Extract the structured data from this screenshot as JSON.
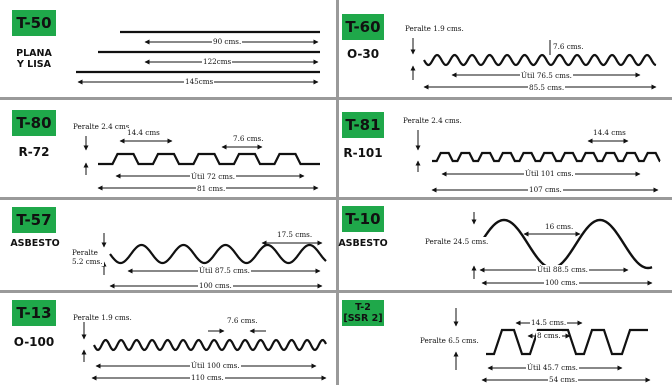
{
  "panels": [
    {
      "code": "T-50",
      "name": "PLANA\nY LISA",
      "dims": {
        "d1": "90 cms.",
        "d2": "122cms",
        "d3": "145cms"
      }
    },
    {
      "code": "T-60",
      "name": "O-30",
      "dims": {
        "peralte": "Peralte 1.9 cms.",
        "pitch": "7.6 cms.",
        "util": "Útil 76.5 cms.",
        "total": "85.5 cms."
      }
    },
    {
      "code": "T-80",
      "name": "R-72",
      "dims": {
        "peralte": "Peralte 2.4 cms.",
        "crest": "14.4 cms",
        "pitch": "7.6 cms.",
        "util": "Útil 72 cms.",
        "total": "81 cms."
      }
    },
    {
      "code": "T-81",
      "name": "R-101",
      "dims": {
        "peralte": "Peralte 2.4 cms.",
        "crest": "14.4 cms",
        "util": "Útil 101 cms.",
        "total": "107 cms."
      }
    },
    {
      "code": "T-57",
      "name": "ASBESTO",
      "dims": {
        "peralte": "Peralte\n5.2 cms.",
        "pitch": "17.5 cms.",
        "util": "Útil 87.5 cms.",
        "total": "100 cms."
      }
    },
    {
      "code": "T-10",
      "name": "ASBESTO",
      "dims": {
        "peralte": "Peralte 24.5 cms.",
        "pitch": "16 cms.",
        "util": "Útil 88.5 cms.",
        "total": "100 cms."
      }
    },
    {
      "code": "T-13",
      "name": "O-100",
      "dims": {
        "peralte": "Peralte 1.9 cms.",
        "pitch": "7.6 cms.",
        "util": "Útil 100 cms.",
        "total": "110 cms."
      }
    },
    {
      "code": "T-2\n[SSR 2]",
      "name": "",
      "dims": {
        "peralte": "Peralte 6.5 cms.",
        "crest": "14.5 cms.",
        "rib": "8 cms.",
        "util": "Útil 45.7 cms.",
        "total": "54 cms."
      }
    }
  ],
  "colors": {
    "tag": "#1fa84a",
    "divider": "#9a9a9a",
    "ink": "#111111"
  }
}
